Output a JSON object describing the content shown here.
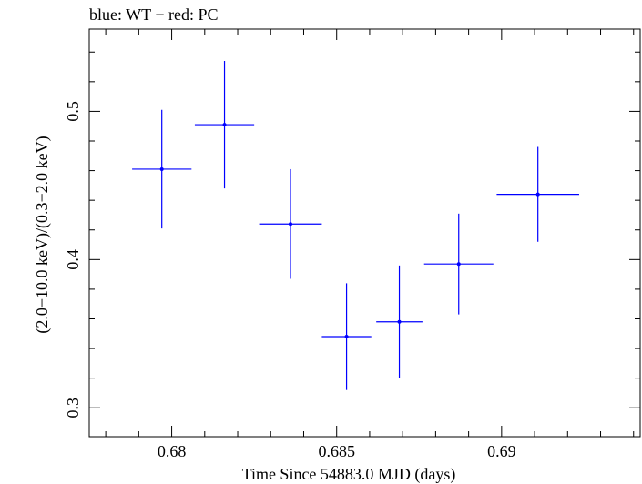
{
  "chart_data": {
    "type": "scatter",
    "title": "blue: WT − red: PC",
    "xlabel": "Time Since 54883.0 MJD (days)",
    "ylabel": "(2.0−10.0 keV)/(0.3−2.0 keV)",
    "xlim": [
      0.6775,
      0.6942
    ],
    "ylim": [
      0.2805,
      0.5555
    ],
    "x_ticks": [
      0.68,
      0.685,
      0.69
    ],
    "x_tick_labels": [
      "0.68",
      "0.685",
      "0.69"
    ],
    "y_ticks": [
      0.3,
      0.4,
      0.5
    ],
    "y_tick_labels": [
      "0.3",
      "0.4",
      "0.5"
    ],
    "x_minor_step": 0.001,
    "y_minor_step": 0.02,
    "grid": false,
    "series": [
      {
        "color": "#0000ff",
        "points": [
          {
            "x": 0.6797,
            "y": 0.461,
            "xerr": 0.0009,
            "yerr": 0.04
          },
          {
            "x": 0.6816,
            "y": 0.491,
            "xerr": 0.0009,
            "yerr": 0.043
          },
          {
            "x": 0.6836,
            "y": 0.424,
            "xerr": 0.00095,
            "yerr": 0.037
          },
          {
            "x": 0.6853,
            "y": 0.348,
            "xerr": 0.00075,
            "yerr": 0.036
          },
          {
            "x": 0.6869,
            "y": 0.358,
            "xerr": 0.0007,
            "yerr": 0.038
          },
          {
            "x": 0.6887,
            "y": 0.397,
            "xerr": 0.00105,
            "yerr": 0.034
          },
          {
            "x": 0.6911,
            "y": 0.444,
            "xerr": 0.00125,
            "yerr": 0.032
          }
        ]
      }
    ]
  }
}
